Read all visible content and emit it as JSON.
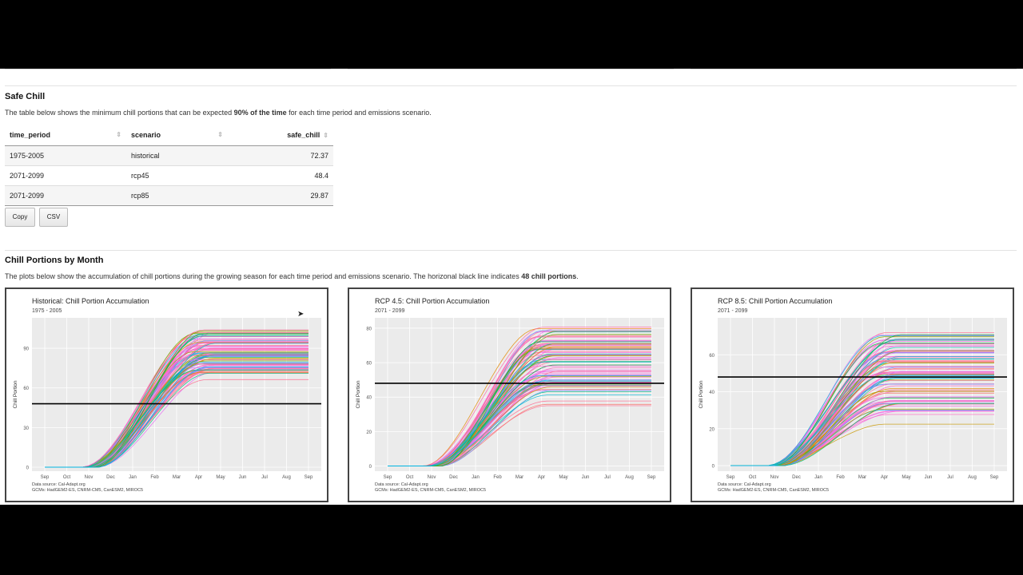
{
  "safe_chill": {
    "heading": "Safe Chill",
    "desc_pre": "The table below shows the minimum chill portions that can be expected ",
    "desc_bold": "90% of the time",
    "desc_post": " for each time period and emissions scenario.",
    "columns": [
      "time_period",
      "scenario",
      "safe_chill"
    ],
    "rows": [
      [
        "1975-2005",
        "historical",
        "72.37"
      ],
      [
        "2071-2099",
        "rcp45",
        "48.4"
      ],
      [
        "2071-2099",
        "rcp85",
        "29.87"
      ]
    ],
    "copy_label": "Copy",
    "csv_label": "CSV"
  },
  "chill_portions": {
    "heading": "Chill Portions by Month",
    "desc_pre": "The plots below show the accumulation of chill portions during the growing season for each time period and emissions scenario. The horizonal black line indicates ",
    "desc_bold": "48 chill portions",
    "desc_post": "."
  },
  "colors": {
    "panel_bg": "#ebebeb",
    "grid": "#ffffff",
    "threshold": "#000000"
  },
  "chart_data": [
    {
      "type": "line",
      "title": "Historical: Chill Portion Accumulation",
      "subtitle": "1975 - 2005",
      "ylabel": "Chill Portion",
      "xlabel": "",
      "x": [
        "Sep",
        "Oct",
        "Nov",
        "Dec",
        "Jan",
        "Feb",
        "Mar",
        "Apr",
        "May",
        "Jun",
        "Jul",
        "Aug",
        "Sep"
      ],
      "ylim": [
        -3,
        113
      ],
      "yticks": [
        0,
        30,
        60,
        90
      ],
      "hline": 48,
      "series_summary": {
        "count": 90,
        "final_min": 66,
        "final_max": 108,
        "typical_final": 80
      },
      "caption1": "Data source: Cal-Adapt.org",
      "caption2": "GCMs: HadGEM2-ES, CNRM-CM5, CanESM2, MIROC5"
    },
    {
      "type": "line",
      "title": "RCP 4.5: Chill Portion Accumulation",
      "subtitle": "2071 - 2099",
      "ylabel": "Chill Portion",
      "xlabel": "",
      "x": [
        "Sep",
        "Oct",
        "Nov",
        "Dec",
        "Jan",
        "Feb",
        "Mar",
        "Apr",
        "May",
        "Jun",
        "Jul",
        "Aug",
        "Sep"
      ],
      "ylim": [
        -3,
        86
      ],
      "yticks": [
        0,
        20,
        40,
        60,
        80
      ],
      "hline": 48,
      "series_summary": {
        "count": 90,
        "final_min": 35,
        "final_max": 83,
        "typical_final": 60
      },
      "caption1": "Data source: Cal-Adapt.org",
      "caption2": "GCMs: HadGEM2-ES, CNRM-CM5, CanESM2, MIROC5"
    },
    {
      "type": "line",
      "title": "RCP 8.5: Chill Portion Accumulation",
      "subtitle": "2071 - 2099",
      "ylabel": "Chill Portion",
      "xlabel": "",
      "x": [
        "Sep",
        "Oct",
        "Nov",
        "Dec",
        "Jan",
        "Feb",
        "Mar",
        "Apr",
        "May",
        "Jun",
        "Jul",
        "Aug",
        "Sep"
      ],
      "ylim": [
        -3,
        80
      ],
      "yticks": [
        0,
        20,
        40,
        60
      ],
      "hline": 48,
      "series_summary": {
        "count": 90,
        "final_min": 21,
        "final_max": 77,
        "typical_final": 45
      },
      "caption1": "Data source: Cal-Adapt.org",
      "caption2": "GCMs: HadGEM2-ES, CNRM-CM5, CanESM2, MIROC5"
    }
  ]
}
